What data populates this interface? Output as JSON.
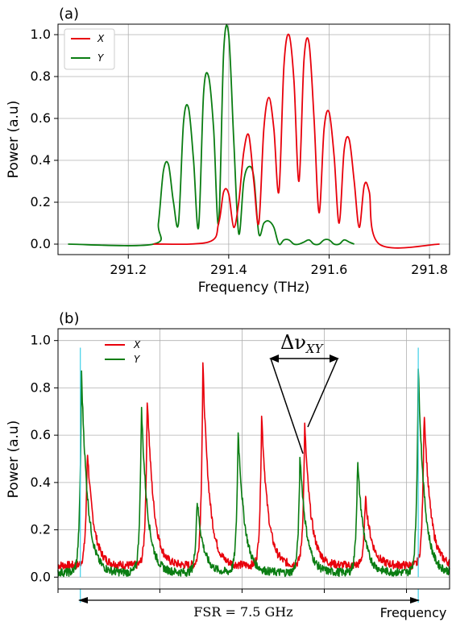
{
  "colors": {
    "x": "#e8000b",
    "y": "#0a7d12",
    "marker": "#3fd0e8",
    "grid": "#b0b0b0"
  },
  "panel_a": {
    "label": "(a)",
    "chart_data": {
      "type": "line",
      "xlabel": "Frequency (THz)",
      "ylabel": "Power (a.u)",
      "xlim": [
        291.06,
        291.84
      ],
      "ylim": [
        -0.05,
        1.05
      ],
      "xticks": [
        291.2,
        291.4,
        291.6,
        291.8
      ],
      "xtick_labels": [
        "291.2",
        "291.4",
        "291.6",
        "291.8"
      ],
      "yticks": [
        0.0,
        0.2,
        0.4,
        0.6,
        0.8,
        1.0
      ],
      "ytick_labels": [
        "0.0",
        "0.2",
        "0.4",
        "0.6",
        "0.8",
        "1.0"
      ],
      "grid": true,
      "legend_position": "top-left",
      "series": [
        {
          "name": "X",
          "color_key": "x",
          "x": [
            291.25,
            291.36,
            291.38,
            291.39,
            291.4,
            291.41,
            291.42,
            291.43,
            291.44,
            291.45,
            291.46,
            291.47,
            291.48,
            291.49,
            291.5,
            291.51,
            291.52,
            291.53,
            291.54,
            291.55,
            291.56,
            291.57,
            291.58,
            291.59,
            291.6,
            291.61,
            291.62,
            291.63,
            291.64,
            291.65,
            291.66,
            291.67,
            291.68,
            291.7,
            291.82
          ],
          "y": [
            0.0,
            0.01,
            0.1,
            0.25,
            0.24,
            0.08,
            0.2,
            0.44,
            0.52,
            0.3,
            0.1,
            0.55,
            0.7,
            0.55,
            0.25,
            0.85,
            1.0,
            0.78,
            0.3,
            0.88,
            0.96,
            0.6,
            0.15,
            0.55,
            0.63,
            0.42,
            0.1,
            0.45,
            0.5,
            0.3,
            0.08,
            0.28,
            0.25,
            0.0,
            0.0
          ]
        },
        {
          "name": "Y",
          "color_key": "y",
          "x": [
            291.08,
            291.25,
            291.26,
            291.27,
            291.28,
            291.29,
            291.3,
            291.31,
            291.32,
            291.33,
            291.34,
            291.35,
            291.36,
            291.37,
            291.38,
            291.39,
            291.4,
            291.41,
            291.42,
            291.43,
            291.44,
            291.45,
            291.46,
            291.47,
            291.48,
            291.49,
            291.5,
            291.51,
            291.52,
            291.53,
            291.54,
            291.55,
            291.56,
            291.57,
            291.58,
            291.59,
            291.6,
            291.61,
            291.62,
            291.63,
            291.64,
            291.65
          ],
          "y": [
            0.0,
            0.0,
            0.1,
            0.35,
            0.38,
            0.2,
            0.1,
            0.58,
            0.65,
            0.4,
            0.08,
            0.72,
            0.8,
            0.55,
            0.1,
            0.92,
            1.0,
            0.5,
            0.05,
            0.3,
            0.37,
            0.32,
            0.05,
            0.1,
            0.11,
            0.08,
            0.0,
            0.02,
            0.02,
            0.0,
            0.0,
            0.01,
            0.02,
            0.0,
            0.0,
            0.02,
            0.02,
            0.0,
            0.0,
            0.02,
            0.01,
            0.0
          ]
        }
      ]
    }
  },
  "panel_b": {
    "label": "(b)",
    "annotation": "Δν",
    "annotation_sub": "XY",
    "fsr_label": "FSR = 7.5 GHz",
    "x_label": "Frequency",
    "chart_data": {
      "type": "line",
      "xlabel": "Frequency",
      "ylabel": "Power (a.u)",
      "xlim": [
        0.0,
        1.0
      ],
      "ylim": [
        -0.05,
        1.05
      ],
      "yticks": [
        0.0,
        0.2,
        0.4,
        0.6,
        0.8,
        1.0
      ],
      "ytick_labels": [
        "0.0",
        "0.2",
        "0.4",
        "0.6",
        "0.8",
        "1.0"
      ],
      "xticks_unlabeled": [
        0.0,
        0.26,
        0.47,
        0.68,
        0.89
      ],
      "grid": true,
      "legend_position": "top-left",
      "baseline": {
        "X": 0.05,
        "Y": 0.02
      },
      "series": [
        {
          "name": "X",
          "color_key": "x",
          "peaks": [
            {
              "x": 0.075,
              "y": 0.54
            },
            {
              "x": 0.228,
              "y": 0.77
            },
            {
              "x": 0.37,
              "y": 0.9
            },
            {
              "x": 0.52,
              "y": 0.69
            },
            {
              "x": 0.63,
              "y": 0.64
            },
            {
              "x": 0.785,
              "y": 0.34
            },
            {
              "x": 0.935,
              "y": 0.71
            }
          ]
        },
        {
          "name": "Y",
          "color_key": "y",
          "peaks": [
            {
              "x": 0.06,
              "y": 0.86
            },
            {
              "x": 0.213,
              "y": 0.72
            },
            {
              "x": 0.355,
              "y": 0.33
            },
            {
              "x": 0.46,
              "y": 0.62
            },
            {
              "x": 0.618,
              "y": 0.52
            },
            {
              "x": 0.765,
              "y": 0.49
            },
            {
              "x": 0.92,
              "y": 0.88
            }
          ]
        },
        {
          "name": "marker",
          "color_key": "marker",
          "lines": [
            {
              "x": 0.057,
              "y": 0.97
            },
            {
              "x": 0.92,
              "y": 0.97
            }
          ]
        }
      ]
    }
  }
}
